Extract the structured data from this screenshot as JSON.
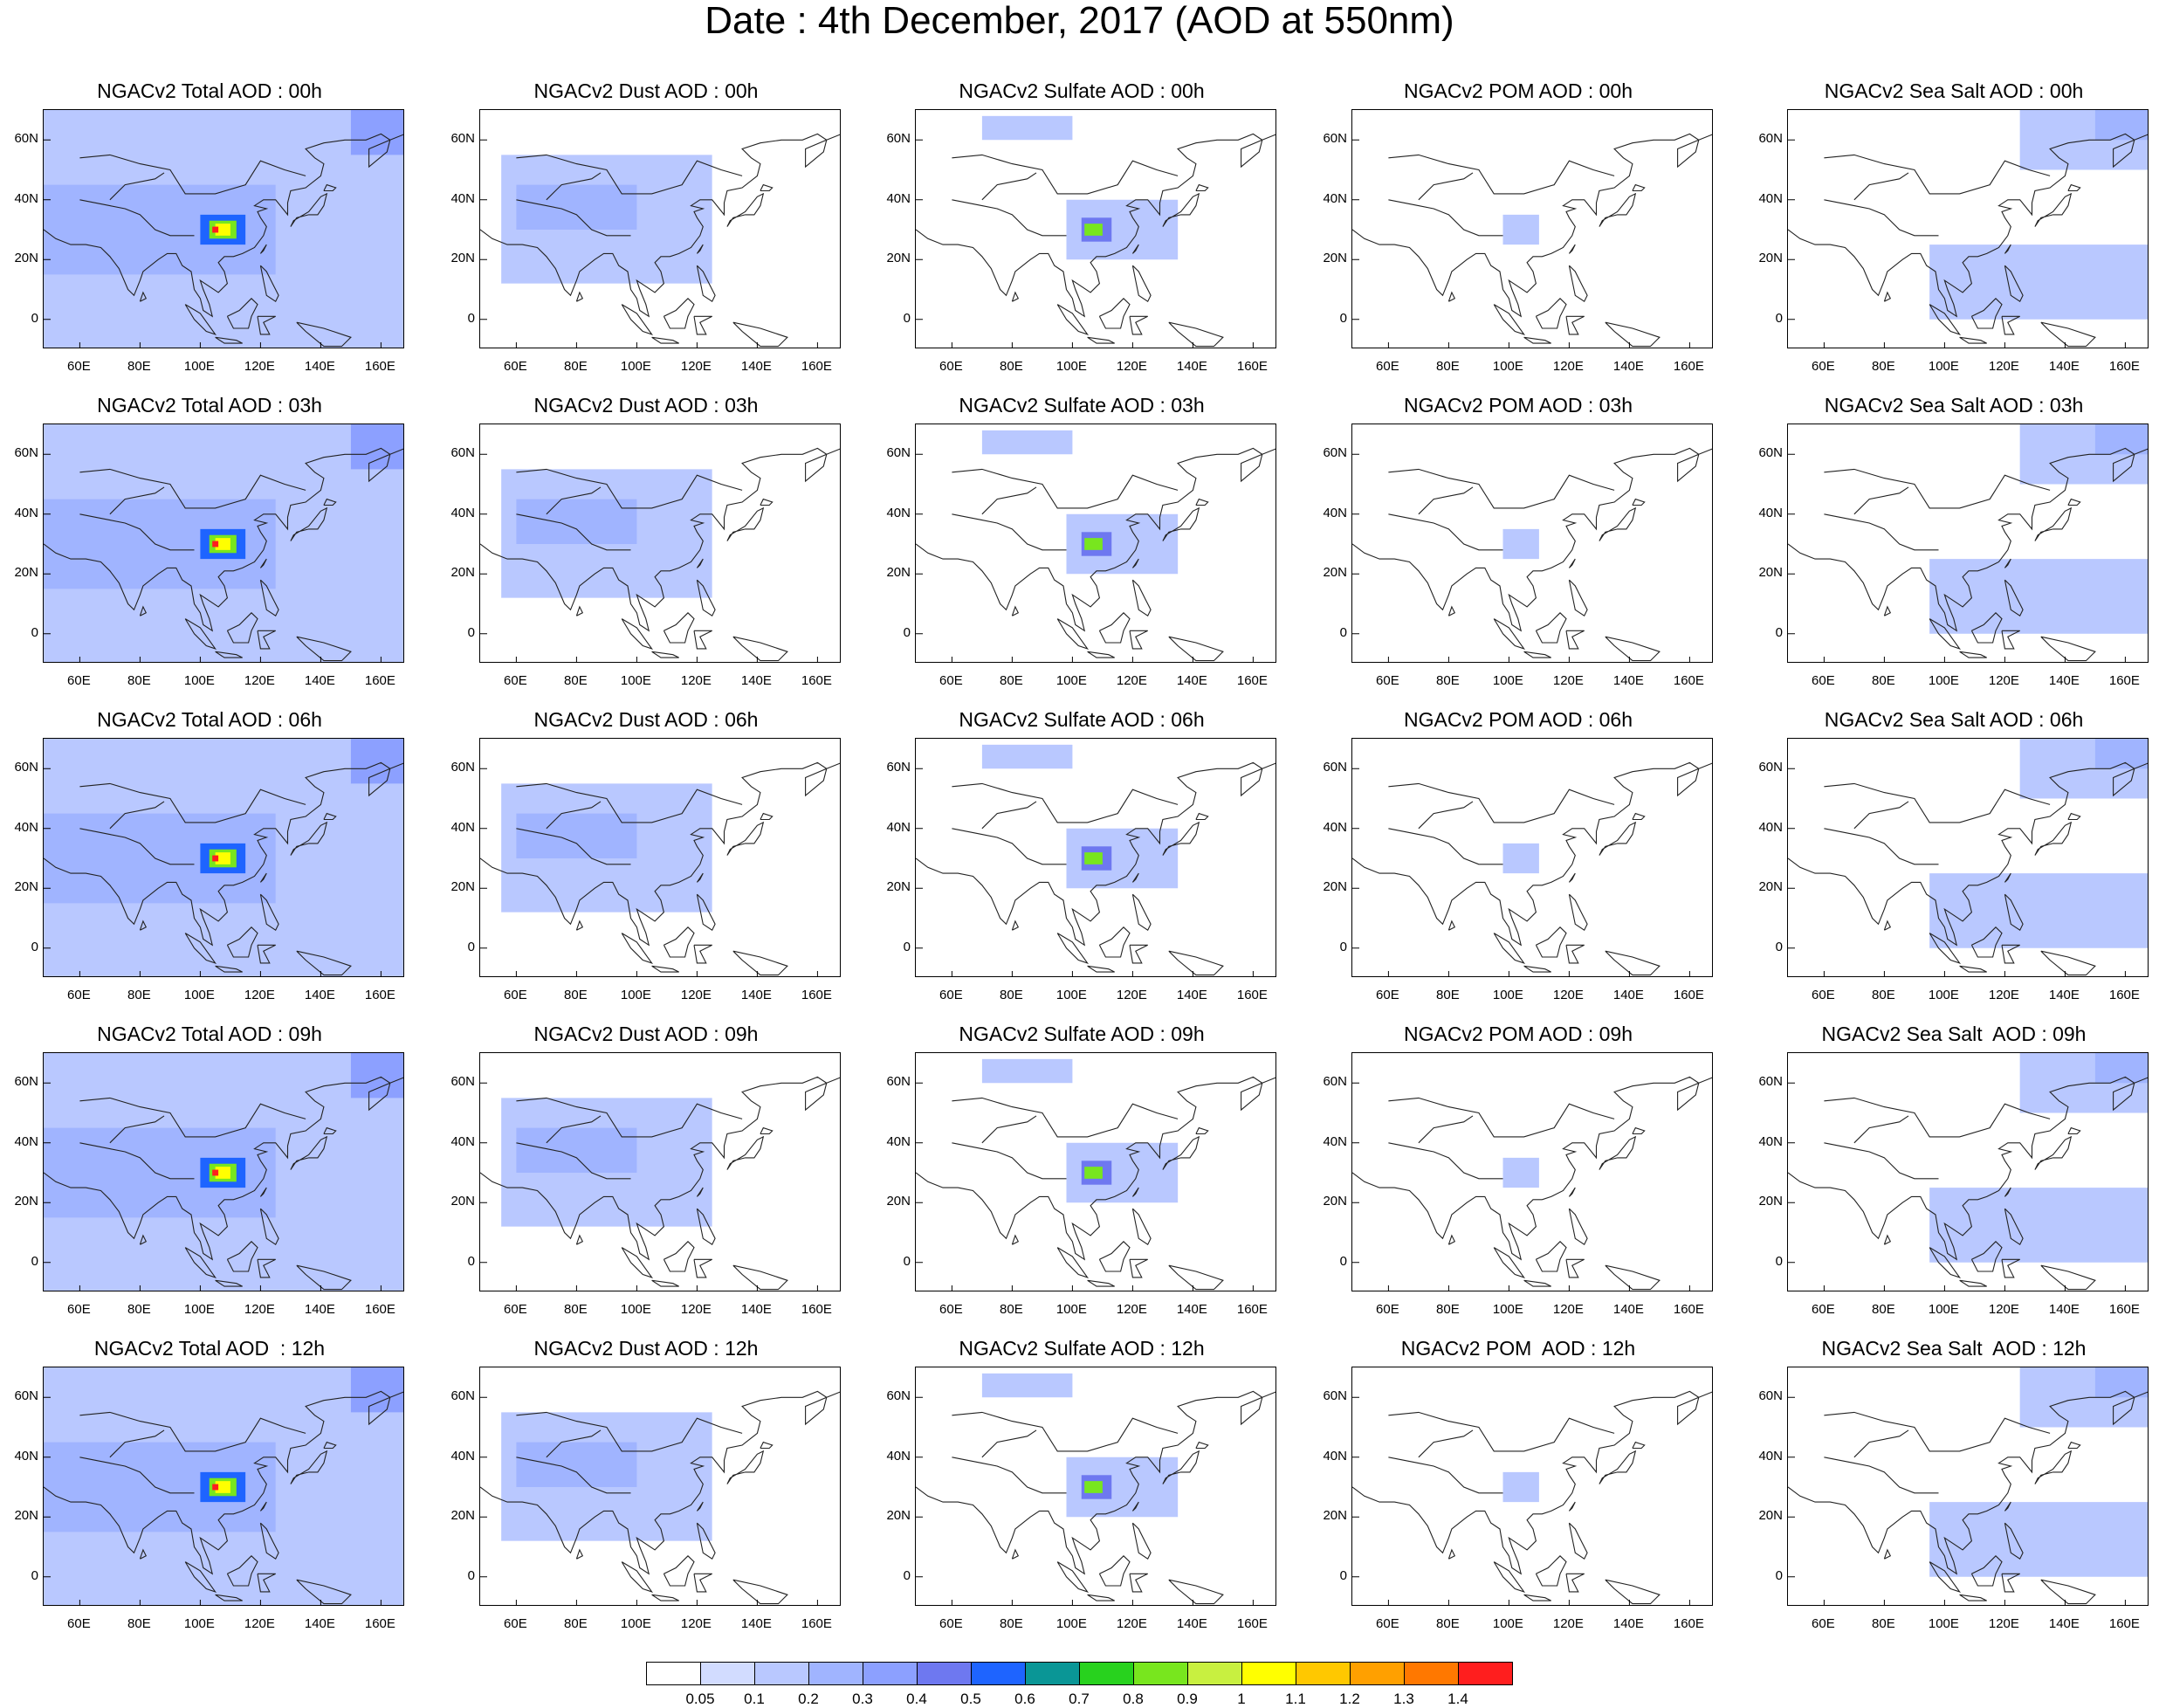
{
  "title": "Date : 4th December, 2017 (AOD at 550nm)",
  "axes": {
    "lat_labels": [
      "60N",
      "40N",
      "20N",
      "0"
    ],
    "lon_labels": [
      "60E",
      "80E",
      "100E",
      "120E",
      "140E",
      "160E"
    ],
    "lat_range": [
      -10,
      70
    ],
    "lon_range": [
      48,
      168
    ]
  },
  "colorbar": {
    "labels": [
      "0.05",
      "0.1",
      "0.2",
      "0.3",
      "0.4",
      "0.5",
      "0.6",
      "0.7",
      "0.8",
      "0.9",
      "1",
      "1.1",
      "1.2",
      "1.3",
      "1.4"
    ],
    "colors": [
      "#ffffff",
      "#d2dcff",
      "#b9c8ff",
      "#a0b4ff",
      "#8ca0ff",
      "#6e78f0",
      "#1e64ff",
      "#0a9696",
      "#28d21e",
      "#78e61e",
      "#c8f040",
      "#ffff00",
      "#ffc800",
      "#ffa000",
      "#ff7800",
      "#ff1e1e"
    ]
  },
  "chart_data": {
    "type": "heatmap",
    "title": "Date : 4th December, 2017 (AOD at 550nm)",
    "variable": "AOD at 550nm",
    "date": "4th December, 2017",
    "rows": [
      "00h",
      "03h",
      "06h",
      "09h",
      "12h"
    ],
    "columns": [
      "Total",
      "Dust",
      "Sulfate",
      "POM",
      "Sea Salt"
    ],
    "panels": [
      [
        "NGACv2 Total AOD : 00h",
        "NGACv2 Dust AOD : 00h",
        "NGACv2 Sulfate AOD : 00h",
        "NGACv2 POM AOD : 00h",
        "NGACv2 Sea Salt AOD : 00h"
      ],
      [
        "NGACv2 Total AOD : 03h",
        "NGACv2 Dust AOD : 03h",
        "NGACv2 Sulfate AOD : 03h",
        "NGACv2 POM AOD : 03h",
        "NGACv2 Sea Salt AOD : 03h"
      ],
      [
        "NGACv2 Total AOD : 06h",
        "NGACv2 Dust AOD : 06h",
        "NGACv2 Sulfate AOD : 06h",
        "NGACv2 POM AOD : 06h",
        "NGACv2 Sea Salt AOD : 06h"
      ],
      [
        "NGACv2 Total AOD : 09h",
        "NGACv2 Dust AOD : 09h",
        "NGACv2 Sulfate AOD : 09h",
        "NGACv2 POM AOD : 09h",
        "NGACv2 Sea Salt  AOD : 09h"
      ],
      [
        "NGACv2 Total AOD  : 12h",
        "NGACv2 Dust AOD : 12h",
        "NGACv2 Sulfate AOD : 12h",
        "NGACv2 POM  AOD : 12h",
        "NGACv2 Sea Salt  AOD : 12h"
      ]
    ],
    "fields": {
      "Total": [
        {
          "lon": [
            48,
            168
          ],
          "lat": [
            -10,
            70
          ],
          "aod": 0.1
        },
        {
          "lon": [
            48,
            125
          ],
          "lat": [
            15,
            45
          ],
          "aod": 0.2
        },
        {
          "lon": [
            150,
            168
          ],
          "lat": [
            55,
            70
          ],
          "aod": 0.3
        },
        {
          "lon": [
            100,
            115
          ],
          "lat": [
            25,
            35
          ],
          "aod": 0.5
        },
        {
          "lon": [
            103,
            112
          ],
          "lat": [
            27,
            33
          ],
          "aod": 0.8
        },
        {
          "lon": [
            105,
            110
          ],
          "lat": [
            28,
            32
          ],
          "aod": 1.0
        },
        {
          "lon": [
            104,
            106
          ],
          "lat": [
            29,
            31
          ],
          "aod": 1.4
        }
      ],
      "Dust": [
        {
          "lon": [
            55,
            125
          ],
          "lat": [
            12,
            55
          ],
          "aod": 0.1
        },
        {
          "lon": [
            60,
            100
          ],
          "lat": [
            30,
            45
          ],
          "aod": 0.2
        }
      ],
      "Sulfate": [
        {
          "lon": [
            70,
            100
          ],
          "lat": [
            60,
            68
          ],
          "aod": 0.1
        },
        {
          "lon": [
            98,
            135
          ],
          "lat": [
            20,
            40
          ],
          "aod": 0.1
        },
        {
          "lon": [
            103,
            113
          ],
          "lat": [
            26,
            34
          ],
          "aod": 0.4
        },
        {
          "lon": [
            104,
            110
          ],
          "lat": [
            28,
            32
          ],
          "aod": 0.8
        }
      ],
      "POM": [
        {
          "lon": [
            98,
            110
          ],
          "lat": [
            25,
            35
          ],
          "aod": 0.1
        }
      ],
      "Sea Salt": [
        {
          "lon": [
            125,
            168
          ],
          "lat": [
            50,
            70
          ],
          "aod": 0.1
        },
        {
          "lon": [
            150,
            168
          ],
          "lat": [
            60,
            70
          ],
          "aod": 0.2
        },
        {
          "lon": [
            95,
            168
          ],
          "lat": [
            0,
            25
          ],
          "aod": 0.1
        }
      ]
    }
  }
}
